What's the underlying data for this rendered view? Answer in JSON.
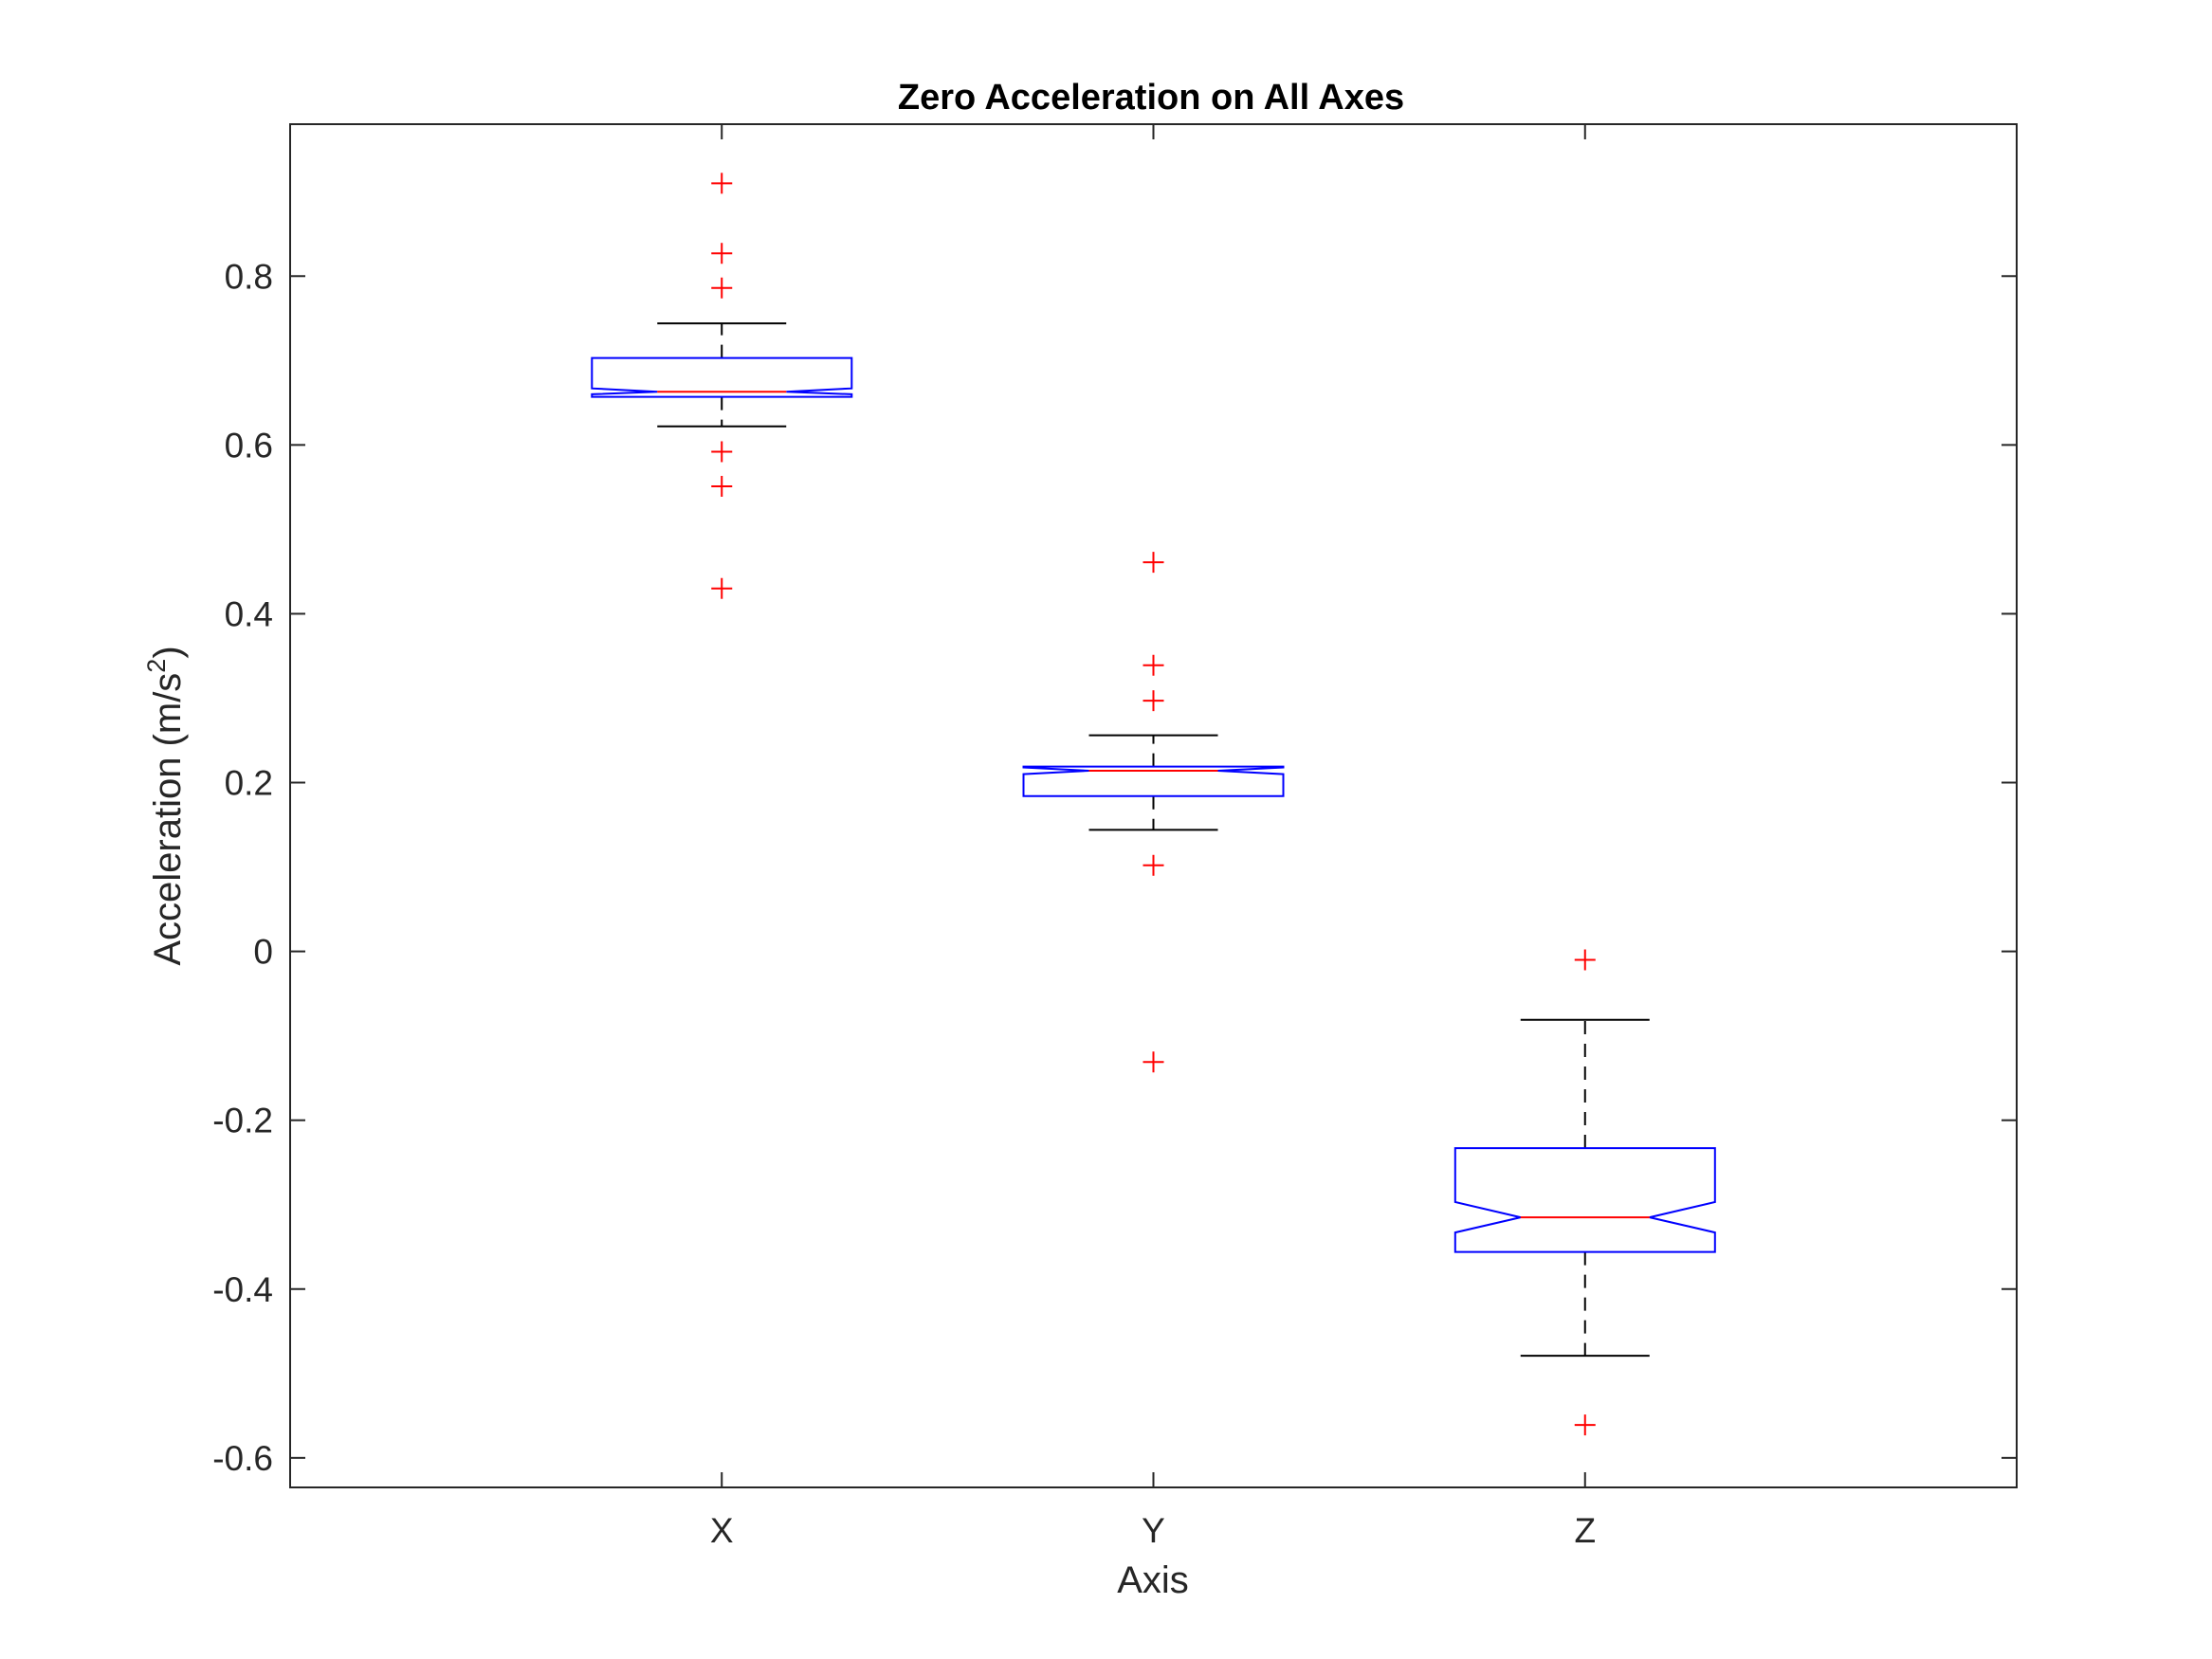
{
  "chart_data": {
    "type": "boxplot",
    "notched": true,
    "title": "Zero Acceleration on All Axes",
    "xlabel": "Axis",
    "ylabel_main": "Acceleration (m/s",
    "ylabel_sup": "2",
    "ylabel_close": ")",
    "ylim": [
      -0.635,
      0.98
    ],
    "yticks": [
      {
        "value": -0.6,
        "label": "-0.6"
      },
      {
        "value": -0.4,
        "label": "-0.4"
      },
      {
        "value": -0.2,
        "label": "-0.2"
      },
      {
        "value": 0,
        "label": "0"
      },
      {
        "value": 0.2,
        "label": "0.2"
      },
      {
        "value": 0.4,
        "label": "0.4"
      },
      {
        "value": 0.6,
        "label": "0.6"
      },
      {
        "value": 0.8,
        "label": "0.8"
      }
    ],
    "categories": [
      "X",
      "Y",
      "Z"
    ],
    "boxes": [
      {
        "category": "X",
        "q1": 0.657,
        "median": 0.663,
        "q3": 0.703,
        "notch_low": 0.66,
        "notch_high": 0.667,
        "whisker_low": 0.622,
        "whisker_high": 0.744,
        "outliers": [
          0.91,
          0.827,
          0.786,
          0.592,
          0.551,
          0.43
        ]
      },
      {
        "category": "Y",
        "q1": 0.184,
        "median": 0.214,
        "q3": 0.219,
        "notch_low": 0.21,
        "notch_high": 0.218,
        "whisker_low": 0.144,
        "whisker_high": 0.256,
        "outliers": [
          0.461,
          0.339,
          0.297,
          0.102,
          -0.131
        ]
      },
      {
        "category": "Z",
        "q1": -0.356,
        "median": -0.315,
        "q3": -0.233,
        "notch_low": -0.333,
        "notch_high": -0.297,
        "whisker_low": -0.479,
        "whisker_high": -0.081,
        "outliers": [
          -0.01,
          -0.561
        ]
      }
    ],
    "colors": {
      "box": "#0000ff",
      "median": "#ff0000",
      "whisker": "#000000",
      "outlier": "#ff0000",
      "axes": "#262626"
    },
    "grid": false,
    "legend": "none"
  }
}
